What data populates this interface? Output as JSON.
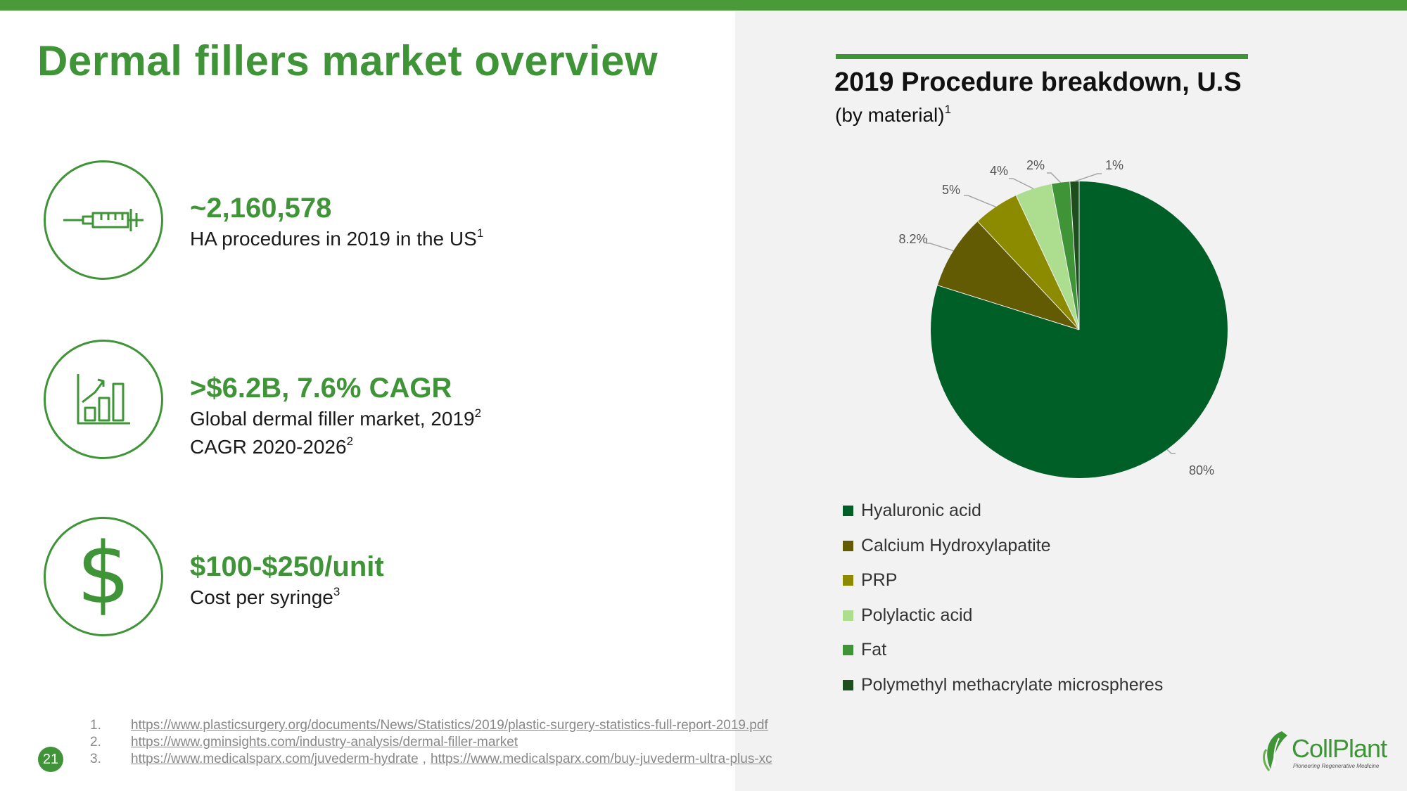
{
  "slide": {
    "title": "Dermal fillers market overview",
    "page_number": "21",
    "accent_color": "#3f9437"
  },
  "stats": [
    {
      "icon": "syringe-icon",
      "value": "~2,160,578",
      "line1": "HA procedures in 2019 in the US",
      "line1_sup": "1"
    },
    {
      "icon": "bar-chart-growth-icon",
      "value": ">$6.2B, 7.6% CAGR",
      "line1": "Global dermal filler market, 2019",
      "line1_sup": "2",
      "line2": "CAGR 2020-2026",
      "line2_sup": "2"
    },
    {
      "icon": "dollar-icon",
      "value": "$100-$250/unit",
      "line1": "Cost per syringe",
      "line1_sup": "3"
    }
  ],
  "chart": {
    "title": "2019 Procedure breakdown, U.S",
    "subtitle": "(by material)",
    "subtitle_sup": "1"
  },
  "chart_data": {
    "type": "pie",
    "categories": [
      "Hyaluronic acid",
      "Calcium Hydroxylapatite",
      "PRP",
      "Polylactic acid",
      "Fat",
      "Polymethyl methacrylate microspheres"
    ],
    "values": [
      80,
      8.2,
      5,
      4,
      2,
      1
    ],
    "labels": [
      "80%",
      "8.2%",
      "5%",
      "4%",
      "2%",
      "1%"
    ],
    "colors": [
      "#005f26",
      "#635b03",
      "#8c8b00",
      "#addd8e",
      "#3f9437",
      "#1e4d1e"
    ],
    "legend_position": "bottom"
  },
  "footnotes": [
    {
      "num": "1.",
      "links": [
        "https://www.plasticsurgery.org/documents/News/Statistics/2019/plastic-surgery-statistics-full-report-2019.pdf"
      ]
    },
    {
      "num": "2.",
      "links": [
        "https://www.gminsights.com/industry-analysis/dermal-filler-market"
      ]
    },
    {
      "num": "3.",
      "links": [
        "https://www.medicalsparx.com/juvederm-hydrate",
        "https://www.medicalsparx.com/buy-juvederm-ultra-plus-xc"
      ],
      "separator": ","
    }
  ],
  "logo": {
    "name": "CollPlant",
    "tagline": "Pioneering Regenerative Medicine"
  }
}
